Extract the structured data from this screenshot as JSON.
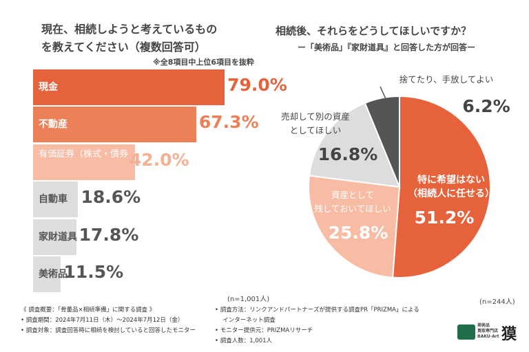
{
  "chart_data": [
    {
      "type": "bar",
      "orientation": "horizontal",
      "title": "現在、相続しようと考えているもの\nを教えてください（複数回答可）",
      "subtitle": "※全8項目中上位6項目を抜粋",
      "categories": [
        "現金",
        "不動産",
        "有価証券（株式・債券\n・手形・小切手など）",
        "自動車",
        "家財道具",
        "美術品"
      ],
      "values": [
        79.0,
        67.3,
        42.0,
        18.6,
        17.8,
        11.5
      ],
      "value_labels": [
        "79.0%",
        "67.3%",
        "42.0%",
        "18.6%",
        "17.8%",
        "11.5%"
      ],
      "colors": [
        "#e5623a",
        "#ec8058",
        "#f8bca4",
        "#dddddd",
        "#dddddd",
        "#dddddd"
      ],
      "label_colors": [
        "#e5623a",
        "#ec8058",
        "#f5b094",
        "#555555",
        "#555555",
        "#555555"
      ],
      "note": "(n=1,001人)"
    },
    {
      "type": "pie",
      "title": "相続後、それらをどうしてほしいですか？",
      "subtitle": "ー「美術品」『家財道具』と回答した方が回答ー",
      "categories": [
        "特に希望はない\n（相続人に任せる）",
        "資産として\n残しておいてほしい",
        "売却して別の資産\nとしてほしい",
        "捨てたり、手放してよい"
      ],
      "values": [
        51.2,
        25.8,
        16.8,
        6.2
      ],
      "value_labels": [
        "51.2%",
        "25.8%",
        "16.8%",
        "6.2%"
      ],
      "colors": [
        "#e5623a",
        "#f8bca4",
        "#dddddd",
        "#555555"
      ],
      "note": "(n=244人)"
    }
  ],
  "footer": {
    "left": [
      "《 調査概要：「骨董品×相続準備」に関する調査 》",
      "• 調査期間：2024年7月11日（木）～2024年7月12日（金）",
      "• 調査対象：調査回答時に相続を検討していると回答したモニター"
    ],
    "right": [
      "• 調査方法：リンクアンドパートナーズが提供する調査PR「PRIZMA」による\n　 インターネット調査",
      "• モニター提供元：PRIZMAリサーチ",
      "• 調査人数：1,001人"
    ],
    "logo_text": "美術品\n買取専門店\nBAKU-Art",
    "logo_mark": "獏"
  }
}
